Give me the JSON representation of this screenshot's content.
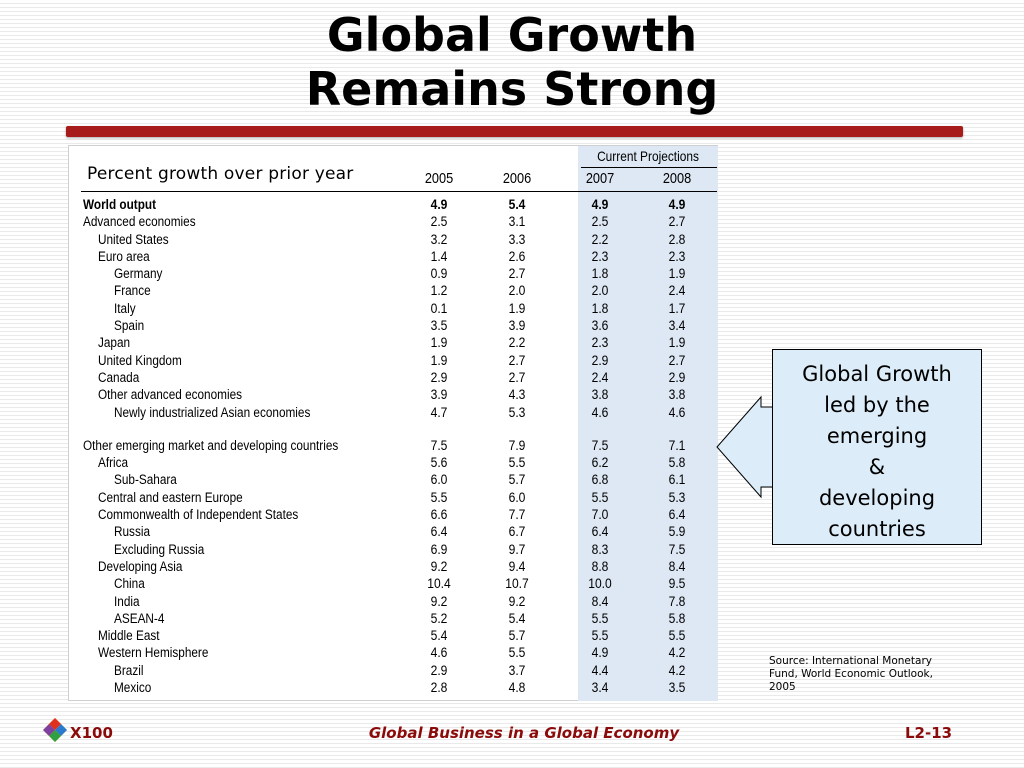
{
  "slide": {
    "title_line1": "Global Growth",
    "title_line2": "Remains Strong"
  },
  "table": {
    "subtitle": "Percent growth over prior year",
    "projections_label": "Current Projections",
    "years": [
      "2005",
      "2006",
      "2007",
      "2008"
    ],
    "rows": [
      {
        "label": "World output",
        "indent": 0,
        "bold": true,
        "values": [
          "4.9",
          "5.4",
          "4.9",
          "4.9"
        ]
      },
      {
        "label": "Advanced economies",
        "indent": 0,
        "values": [
          "2.5",
          "3.1",
          "2.5",
          "2.7"
        ]
      },
      {
        "label": "United States",
        "indent": 1,
        "values": [
          "3.2",
          "3.3",
          "2.2",
          "2.8"
        ]
      },
      {
        "label": "Euro area",
        "indent": 1,
        "values": [
          "1.4",
          "2.6",
          "2.3",
          "2.3"
        ]
      },
      {
        "label": "Germany",
        "indent": 2,
        "values": [
          "0.9",
          "2.7",
          "1.8",
          "1.9"
        ]
      },
      {
        "label": "France",
        "indent": 2,
        "values": [
          "1.2",
          "2.0",
          "2.0",
          "2.4"
        ]
      },
      {
        "label": "Italy",
        "indent": 2,
        "values": [
          "0.1",
          "1.9",
          "1.8",
          "1.7"
        ]
      },
      {
        "label": "Spain",
        "indent": 2,
        "values": [
          "3.5",
          "3.9",
          "3.6",
          "3.4"
        ]
      },
      {
        "label": "Japan",
        "indent": 1,
        "values": [
          "1.9",
          "2.2",
          "2.3",
          "1.9"
        ]
      },
      {
        "label": "United Kingdom",
        "indent": 1,
        "values": [
          "1.9",
          "2.7",
          "2.9",
          "2.7"
        ]
      },
      {
        "label": "Canada",
        "indent": 1,
        "values": [
          "2.9",
          "2.7",
          "2.4",
          "2.9"
        ]
      },
      {
        "label": "Other advanced economies",
        "indent": 1,
        "values": [
          "3.9",
          "4.3",
          "3.8",
          "3.8"
        ]
      },
      {
        "label": "Newly industrialized Asian economies",
        "indent": 2,
        "values": [
          "4.7",
          "5.3",
          "4.6",
          "4.6"
        ]
      },
      {
        "label": "Other emerging market and developing countries",
        "indent": 0,
        "gap": true,
        "values": [
          "7.5",
          "7.9",
          "7.5",
          "7.1"
        ]
      },
      {
        "label": "Africa",
        "indent": 1,
        "values": [
          "5.6",
          "5.5",
          "6.2",
          "5.8"
        ]
      },
      {
        "label": "Sub-Sahara",
        "indent": 2,
        "values": [
          "6.0",
          "5.7",
          "6.8",
          "6.1"
        ]
      },
      {
        "label": "Central and eastern Europe",
        "indent": 1,
        "values": [
          "5.5",
          "6.0",
          "5.5",
          "5.3"
        ]
      },
      {
        "label": "Commonwealth of Independent States",
        "indent": 1,
        "values": [
          "6.6",
          "7.7",
          "7.0",
          "6.4"
        ]
      },
      {
        "label": "Russia",
        "indent": 2,
        "values": [
          "6.4",
          "6.7",
          "6.4",
          "5.9"
        ]
      },
      {
        "label": "Excluding Russia",
        "indent": 2,
        "values": [
          "6.9",
          "9.7",
          "8.3",
          "7.5"
        ]
      },
      {
        "label": "Developing Asia",
        "indent": 1,
        "values": [
          "9.2",
          "9.4",
          "8.8",
          "8.4"
        ]
      },
      {
        "label": "China",
        "indent": 2,
        "values": [
          "10.4",
          "10.7",
          "10.0",
          "9.5"
        ]
      },
      {
        "label": "India",
        "indent": 2,
        "values": [
          "9.2",
          "9.2",
          "8.4",
          "7.8"
        ]
      },
      {
        "label": "ASEAN-4",
        "indent": 2,
        "values": [
          "5.2",
          "5.4",
          "5.5",
          "5.8"
        ]
      },
      {
        "label": "Middle East",
        "indent": 1,
        "values": [
          "5.4",
          "5.7",
          "5.5",
          "5.5"
        ]
      },
      {
        "label": "Western Hemisphere",
        "indent": 1,
        "values": [
          "4.6",
          "5.5",
          "4.9",
          "4.2"
        ]
      },
      {
        "label": "Brazil",
        "indent": 2,
        "values": [
          "2.9",
          "3.7",
          "4.4",
          "4.2"
        ]
      },
      {
        "label": "Mexico",
        "indent": 2,
        "values": [
          "2.8",
          "4.8",
          "3.4",
          "3.5"
        ]
      }
    ]
  },
  "callout": {
    "lines": [
      "Global Growth",
      "led by the",
      "emerging",
      "&",
      "developing",
      "countries"
    ]
  },
  "source": {
    "line1": "Source: International Monetary",
    "line2": "Fund, World Economic Outlook,",
    "line3": "2005"
  },
  "footer": {
    "course_code": "X100",
    "course_title": "Global Business in a Global Economy",
    "page": "L2-13"
  },
  "colors": {
    "title_bar": "#a81b1b",
    "footer_text": "#8b0a0a",
    "projection_band": "#dde8f4",
    "callout_fill": "#dcecf8"
  }
}
